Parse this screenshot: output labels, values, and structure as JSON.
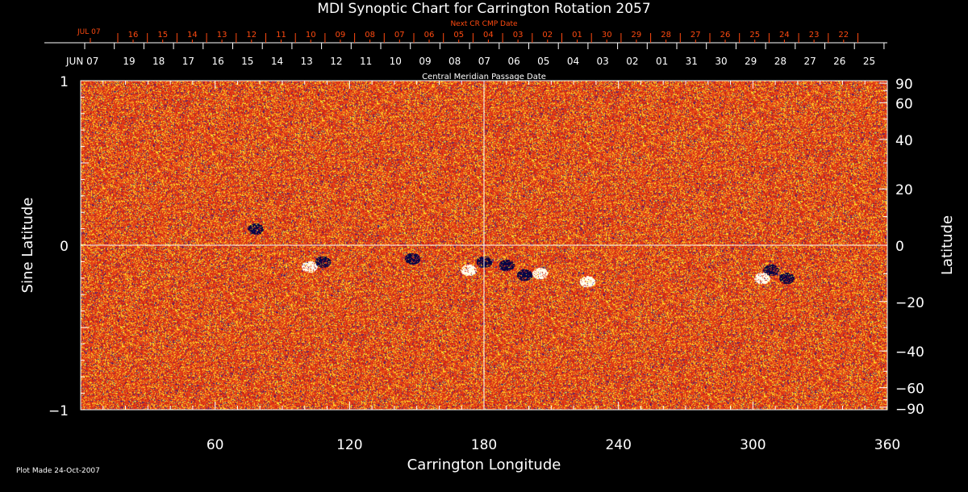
{
  "chart_data": {
    "type": "heatmap",
    "title": "MDI Synoptic Chart for Carrington Rotation 2057",
    "xlabel": "Carrington Longitude",
    "ylabel": "Sine Latitude",
    "y2label": "Latitude",
    "xlim": [
      0,
      360
    ],
    "ylim": [
      -1,
      1
    ],
    "x_ticks": [
      "60",
      "120",
      "180",
      "240",
      "300",
      "360"
    ],
    "y_ticks": [
      "1",
      "0",
      "−1"
    ],
    "y2_ticks": [
      "90",
      "60",
      "40",
      "20",
      "0",
      "−20",
      "−40",
      "−60",
      "−90"
    ],
    "y2_tick_values": [
      90,
      60,
      40,
      20,
      0,
      -20,
      -40,
      -60,
      -90
    ],
    "top_axis_label": "Central Meridian Passage Date",
    "top_axis_start": "JUN 07",
    "top_axis_ticks": [
      "19",
      "18",
      "17",
      "16",
      "15",
      "14",
      "13",
      "12",
      "11",
      "10",
      "09",
      "08",
      "07",
      "06",
      "05",
      "04",
      "03",
      "02",
      "01",
      "31",
      "30",
      "29",
      "28",
      "27",
      "26",
      "25"
    ],
    "next_axis_label": "Next CR CMP Date",
    "next_axis_start": "JUL 07",
    "next_axis_ticks": [
      "16",
      "15",
      "14",
      "13",
      "12",
      "11",
      "10",
      "09",
      "08",
      "07",
      "06",
      "05",
      "04",
      "03",
      "02",
      "01",
      "30",
      "29",
      "28",
      "27",
      "26",
      "25",
      "24",
      "23",
      "22"
    ],
    "colors": {
      "background": "#000000",
      "field_base": "#e8401a",
      "positive": "#ffffff",
      "negative": "#101060",
      "next_axis": "#ff4a10"
    }
  },
  "footer": {
    "plot_made": "Plot Made 24-Oct-2007"
  }
}
